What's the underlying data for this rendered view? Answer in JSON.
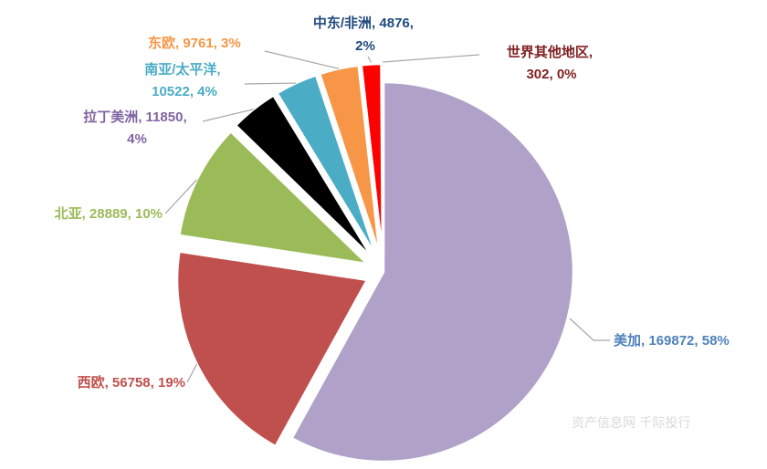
{
  "chart_data": {
    "type": "pie",
    "slices": [
      {
        "name": "美加",
        "value": 169872,
        "percent": "58%",
        "label": "美加, 169872, 58%",
        "color": "#b0a1c8",
        "label_color": "#4f81bd"
      },
      {
        "name": "西欧",
        "value": 56758,
        "percent": "19%",
        "label": "西欧, 56758, 19%",
        "color": "#c0504d",
        "label_color": "#c0504d"
      },
      {
        "name": "北亚",
        "value": 28889,
        "percent": "10%",
        "label": "北亚, 28889, 10%",
        "color": "#9bbb59",
        "label_color": "#9bbb59"
      },
      {
        "name": "拉丁美洲",
        "value": 11850,
        "percent": "4%",
        "label_lines": [
          "拉丁美洲, 11850,",
          "4%"
        ],
        "color": "#000000",
        "label_color": "#8064a2"
      },
      {
        "name": "南亚/太平洋",
        "value": 10522,
        "percent": "4%",
        "label_lines": [
          "南亚/太平洋,",
          "10522, 4%"
        ],
        "color": "#4bacc6",
        "label_color": "#4bacc6"
      },
      {
        "name": "东欧",
        "value": 9761,
        "percent": "3%",
        "label": "东欧, 9761, 3%",
        "color": "#f79646",
        "label_color": "#f79646"
      },
      {
        "name": "中东/非洲",
        "value": 4876,
        "percent": "2%",
        "label_lines": [
          "中东/非洲, 4876,",
          "2%"
        ],
        "color": "#ff0000",
        "label_color": "#1f497d"
      },
      {
        "name": "世界其他地区",
        "value": 302,
        "percent": "0%",
        "label_lines": [
          "世界其他地区,",
          "302, 0%"
        ],
        "color": "#ffffff",
        "label_color": "#7f1f1f"
      }
    ],
    "watermark": "资产信息网 千际投行"
  }
}
